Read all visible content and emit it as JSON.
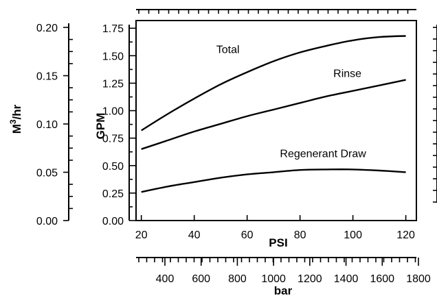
{
  "chart_data": {
    "type": "line",
    "x": [
      20,
      30,
      40,
      50,
      60,
      70,
      80,
      90,
      100,
      110,
      120
    ],
    "xlabel": "PSI",
    "xlim": [
      18,
      124
    ],
    "xticks": [
      "20",
      "40",
      "60",
      "80",
      "100",
      "120"
    ],
    "ylabel": "GPM",
    "ylim": [
      0,
      1.82
    ],
    "yticks": [
      "0.00",
      "0.25",
      "0.50",
      "0.75",
      "1.00",
      "1.25",
      "1.50",
      "1.75"
    ],
    "series": [
      {
        "name": "Total",
        "values": [
          0.82,
          0.97,
          1.11,
          1.24,
          1.35,
          1.45,
          1.53,
          1.59,
          1.64,
          1.67,
          1.68
        ]
      },
      {
        "name": "Rinse",
        "values": [
          0.65,
          0.73,
          0.81,
          0.88,
          0.95,
          1.01,
          1.07,
          1.13,
          1.18,
          1.23,
          1.28
        ]
      },
      {
        "name": "Regenerant Draw",
        "values": [
          0.26,
          0.31,
          0.35,
          0.39,
          0.42,
          0.44,
          0.46,
          0.465,
          0.465,
          0.455,
          0.44
        ]
      }
    ],
    "secondary_y": {
      "label_prefix": "M",
      "label_sup": "3",
      "label_suffix": "/hr",
      "ticks": [
        "0.00",
        "0.05",
        "0.10",
        "0.15",
        "0.20"
      ]
    },
    "secondary_x": {
      "label": "bar",
      "ticks": [
        "400",
        "600",
        "800",
        "1000",
        "1200",
        "1400",
        "1600",
        "1800"
      ]
    }
  }
}
